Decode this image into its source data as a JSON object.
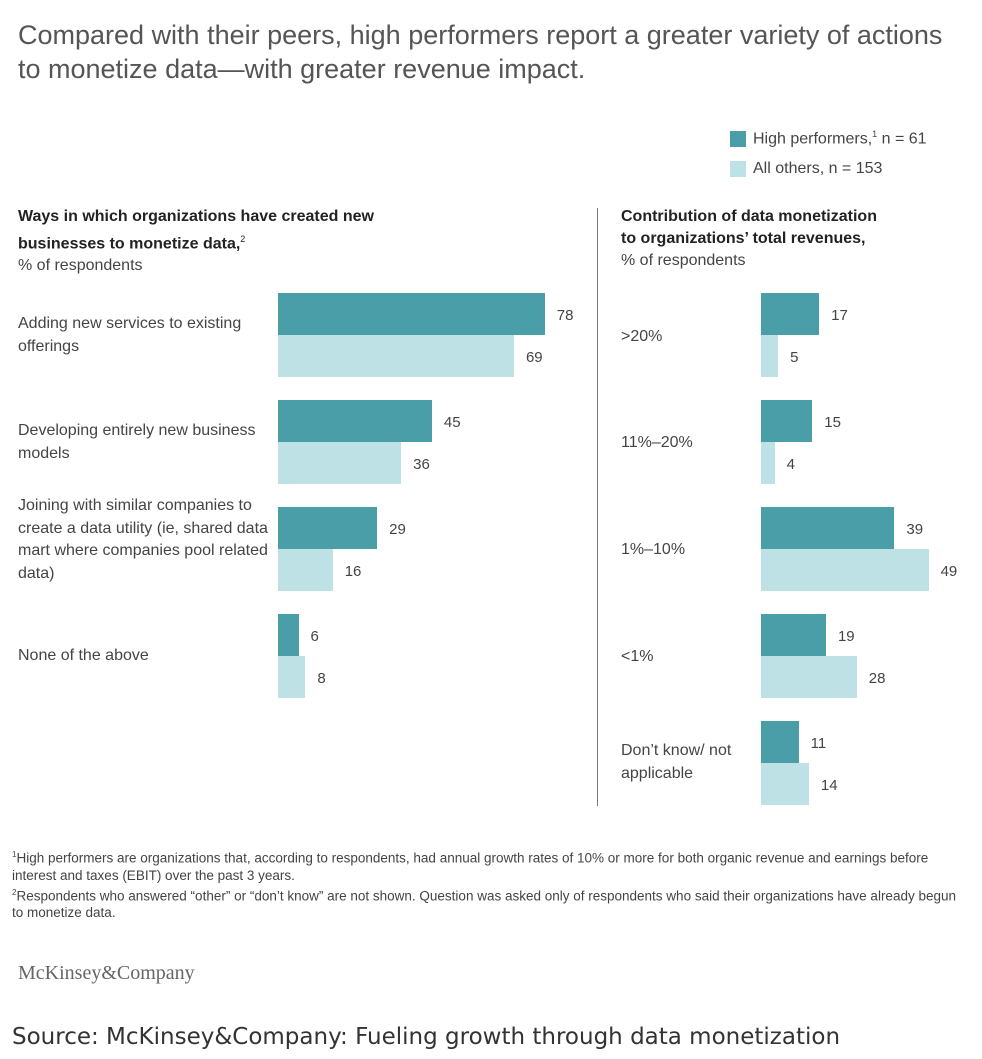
{
  "title": "Compared with their peers, high performers report a greater variety of actions to monetize data—with greater revenue impact.",
  "legend": {
    "high": {
      "label": "High performers,",
      "sup": "1",
      "n": " n = 61",
      "color": "#4a9ea8"
    },
    "others": {
      "label": "All others, n = 153",
      "color": "#bde1e5"
    }
  },
  "left_panel": {
    "title": "Ways in which organizations have created new businesses to monetize data,",
    "title_sup": "2",
    "subtitle": "% of respondents"
  },
  "right_panel": {
    "title_line1": "Contribution of data monetization",
    "title_line2": "to organizations’ total revenues,",
    "subtitle": "% of respondents"
  },
  "chart_data": [
    {
      "type": "bar",
      "orientation": "horizontal",
      "title": "Ways in which organizations have created new businesses to monetize data",
      "ylabel": "% of respondents",
      "categories": [
        "Adding new services to existing offerings",
        "Developing entirely new business models",
        "Joining with similar companies to create a data utility (ie, shared data mart where companies pool related data)",
        "None of the above"
      ],
      "series": [
        {
          "name": "High performers, n = 61",
          "values": [
            78,
            45,
            29,
            6
          ]
        },
        {
          "name": "All others, n = 153",
          "values": [
            69,
            36,
            16,
            8
          ]
        }
      ],
      "xlim": [
        0,
        100
      ],
      "grid": false
    },
    {
      "type": "bar",
      "orientation": "horizontal",
      "title": "Contribution of data monetization to organizations’ total revenues",
      "ylabel": "% of respondents",
      "categories": [
        ">20%",
        "11%–20%",
        "1%–10%",
        "<1%",
        "Don’t know/ not applicable"
      ],
      "series": [
        {
          "name": "High performers, n = 61",
          "values": [
            17,
            15,
            39,
            19,
            11
          ]
        },
        {
          "name": "All others, n = 153",
          "values": [
            5,
            4,
            49,
            28,
            14
          ]
        }
      ],
      "xlim": [
        0,
        100
      ],
      "grid": false
    }
  ],
  "footnotes": {
    "note1": "High performers are organizations that, according to respondents, had annual growth rates of 10% or more for both organic revenue and earnings before interest and taxes (EBIT) over the past 3 years.",
    "note1_sup": "1",
    "note2": "Respondents who answered “other” or “don’t know” are not shown. Question was asked only of respondents who said their organizations have already begun to monetize data.",
    "note2_sup": "2"
  },
  "brand": "McKinsey&Company",
  "source": "Source: McKinsey&Company: Fueling growth through data monetization"
}
